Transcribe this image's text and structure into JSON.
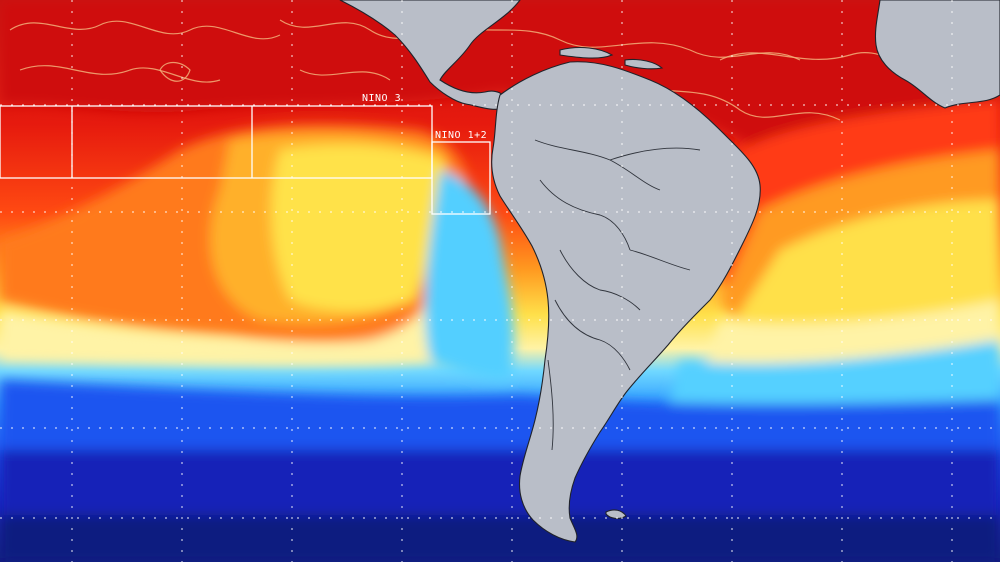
{
  "map": {
    "regions": [
      {
        "id": "nino-3",
        "label": "NINO 3"
      },
      {
        "id": "nino-1-2",
        "label": "NINO 1+2"
      }
    ],
    "colors": {
      "very_warm": "#d50f0a",
      "warm": "#ff3a12",
      "orange": "#ff8a1c",
      "yellow": "#ffd83a",
      "pale_yellow": "#fff2a0",
      "cyan": "#5fd3ff",
      "light_blue": "#2a9bff",
      "blue": "#1e55f0",
      "deep_blue": "#1622b8",
      "navy": "#0a1a7a",
      "land": "#b9bec8",
      "contour": "#f2b07a"
    },
    "grid": true
  }
}
